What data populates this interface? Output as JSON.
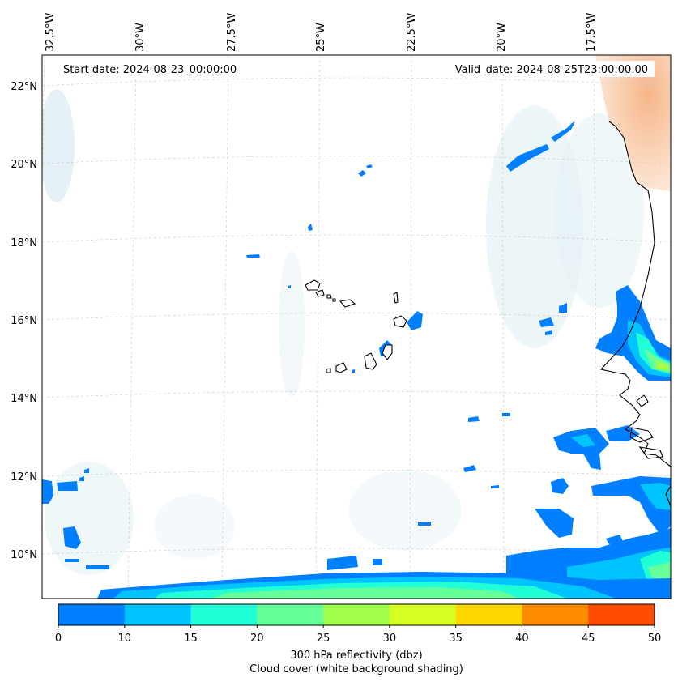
{
  "map": {
    "start_date": "Start date: 2024-08-23_00:00:00",
    "valid_date": "Valid_date: 2024-08-25T23:00:00.00",
    "lon_labels": [
      "32.5°W",
      "30°W",
      "27.5°W",
      "25°W",
      "22.5°W",
      "20°W",
      "17.5°W"
    ],
    "lat_labels": [
      "22°N",
      "20°N",
      "18°N",
      "16°N",
      "14°N",
      "12°N",
      "10°N"
    ]
  },
  "colorbar": {
    "ticks": [
      "0",
      "10",
      "15",
      "20",
      "25",
      "30",
      "35",
      "40",
      "45",
      "50"
    ],
    "colors": [
      "#0080ff",
      "#00c4ff",
      "#20ffd6",
      "#66ff99",
      "#a0ff4c",
      "#d8ff22",
      "#ffd800",
      "#ff8c00",
      "#ff4c00"
    ],
    "label_line1": "300 hPa reflectivity (dbz)",
    "label_line2": "Cloud cover (white background shading)"
  }
}
